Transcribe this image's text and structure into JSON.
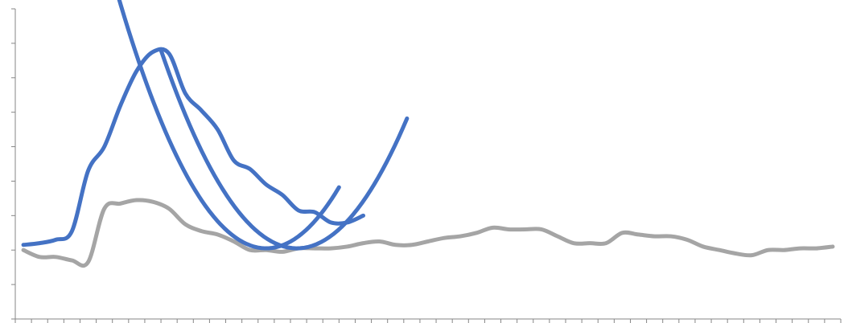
{
  "chart_data": {
    "type": "line",
    "title": "",
    "xlabel": "",
    "ylabel": "",
    "grid": false,
    "legend": "none",
    "tick_labels": false,
    "x_categories": 51,
    "ylim": [
      0,
      9
    ],
    "y_major_step": 1,
    "series": [
      {
        "color": "#a5a5a5",
        "kind": "smooth",
        "values": [
          2.0,
          1.8,
          1.8,
          1.7,
          1.65,
          3.2,
          3.35,
          3.45,
          3.4,
          3.2,
          2.75,
          2.55,
          2.45,
          2.25,
          2.0,
          2.0,
          1.95,
          2.05,
          2.05,
          2.05,
          2.1,
          2.2,
          2.25,
          2.15,
          2.15,
          2.25,
          2.35,
          2.4,
          2.5,
          2.65,
          2.6,
          2.6,
          2.6,
          2.4,
          2.2,
          2.2,
          2.2,
          2.5,
          2.45,
          2.4,
          2.4,
          2.3,
          2.1,
          2.0,
          1.9,
          1.85,
          2.0,
          2.0,
          2.05,
          2.05,
          2.1
        ]
      },
      {
        "color": "#4472c4",
        "kind": "smooth",
        "values": [
          2.15,
          2.2,
          2.3,
          2.55,
          4.3,
          5.0,
          6.2,
          7.2,
          7.75,
          7.7,
          6.55,
          6.05,
          5.5,
          4.6,
          4.35,
          3.9,
          3.6,
          3.15,
          3.1,
          2.8,
          2.8,
          3.0
        ]
      },
      {
        "color": "#4472c4",
        "kind": "trendline",
        "x_values": [
          5.8,
          19.5
        ],
        "coefficients": [
          2.3,
          -0.2128,
          0.0085
        ]
      },
      {
        "color": "#4472c4",
        "kind": "trendline",
        "x_values": [
          8.5,
          23.7
        ],
        "coefficients": [
          1.9,
          -0.1088,
          0.0049
        ]
      }
    ]
  }
}
